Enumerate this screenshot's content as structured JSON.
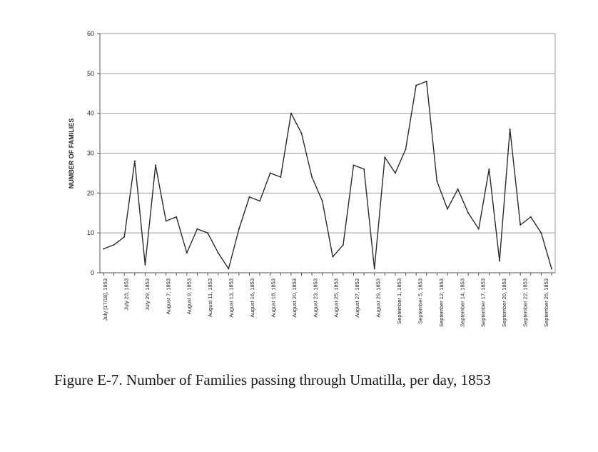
{
  "figure": {
    "caption": "Figure E-7. Number of Families passing through Umatilla, per day, 1853"
  },
  "colors": {
    "line": "#2a2a2a",
    "grid": "#9a9a9a",
    "axis": "#555555",
    "text": "#222222"
  },
  "chart_data": {
    "type": "line",
    "title": "",
    "xlabel": "",
    "ylabel": "NUMBER OF FAMILIES",
    "ylim": [
      0,
      60
    ],
    "yticks": [
      0,
      10,
      20,
      30,
      40,
      50,
      60
    ],
    "grid": true,
    "legend": "none",
    "x_tick_labels": [
      "July [17/18], 1853",
      "July 23, 1853",
      "July 29, 1853",
      "August 7, 1853",
      "August 9, 1853",
      "August 11, 1853",
      "August 13, 1853",
      "August 16, 1853",
      "August 18, 1853",
      "August 20, 1853",
      "August 23, 1853",
      "August 25, 1853",
      "August 27, 1853",
      "August 29, 1853",
      "September 1, 1853",
      "September 5, 1853",
      "September 12, 1853",
      "September 14, 1853",
      "September 17, 1853",
      "September 20, 1853",
      "September 22, 1853",
      "September 25, 1853"
    ],
    "series": [
      {
        "values": [
          6,
          7,
          9,
          28,
          2,
          27,
          13,
          14,
          5,
          11,
          10,
          5,
          1,
          11,
          19,
          18,
          25,
          24,
          40,
          35,
          24,
          18,
          4,
          7,
          27,
          26,
          1,
          29,
          25,
          31,
          47,
          48,
          23,
          16,
          21,
          15,
          11,
          26,
          3,
          36,
          12,
          14,
          10,
          1
        ]
      }
    ]
  }
}
